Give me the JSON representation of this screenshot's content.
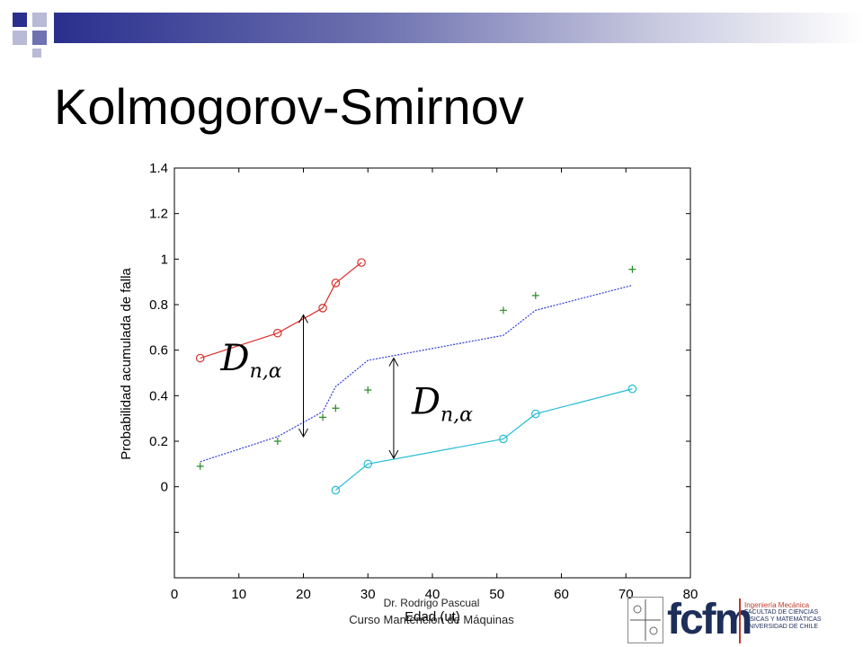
{
  "slide": {
    "title": "Kolmogorov-Smirnov",
    "footer_author": "Dr. Rodrigo Pascual",
    "footer_course": "Curso Mantención de Máquinas",
    "logo": {
      "wordmark": "fcfm",
      "line1": "Ingeniería Mecánica",
      "line2": "FACULTAD DE CIENCIAS",
      "line3": "FÍSICAS Y MATEMÁTICAS",
      "line4": "UNIVERSIDAD DE CHILE"
    },
    "colors": {
      "title_bar": "#2a2f8e",
      "accent": "#c0392b"
    }
  },
  "chart_data": {
    "type": "line",
    "title": "",
    "xlabel": "Edad (ut)",
    "ylabel": "Probabilidad acumulada de falla",
    "xlim": [
      0,
      80
    ],
    "ylim": [
      -0.4,
      1.4
    ],
    "x_ticks": [
      0,
      10,
      20,
      30,
      40,
      50,
      60,
      70,
      80
    ],
    "y_ticks": [
      0,
      0.2,
      0.4,
      0.6,
      0.8,
      1,
      1.2,
      1.4
    ],
    "y_tick_labels": [
      "0",
      "0.2",
      "0.4",
      "0.6",
      "0.8",
      "1",
      "1.2",
      "1.4"
    ],
    "grid": false,
    "series": [
      {
        "style": "line-circle",
        "color": "#d9302c",
        "x": [
          4,
          16,
          23,
          25,
          29
        ],
        "y": [
          0.565,
          0.675,
          0.785,
          0.895,
          0.985
        ]
      },
      {
        "style": "dashed",
        "color": "#2f3bd6",
        "x": [
          4,
          16,
          23,
          25,
          30,
          51,
          56,
          71
        ],
        "y": [
          0.11,
          0.22,
          0.33,
          0.44,
          0.555,
          0.665,
          0.775,
          0.885
        ]
      },
      {
        "style": "line-circle",
        "color": "#22bcd4",
        "x": [
          25,
          30,
          51,
          56,
          71
        ],
        "y": [
          -0.015,
          0.1,
          0.21,
          0.32,
          0.43
        ]
      },
      {
        "style": "plus",
        "color": "#2a8a2a",
        "x": [
          4,
          16,
          23,
          25,
          30,
          51,
          56,
          71
        ],
        "y": [
          0.09,
          0.2,
          0.305,
          0.345,
          0.425,
          0.775,
          0.84,
          0.955
        ]
      }
    ],
    "annotations": [
      {
        "label": "D",
        "subscript": "n,α",
        "x": 20,
        "y_from": 0.22,
        "y_to": 0.755
      },
      {
        "label": "D",
        "subscript": "n,α",
        "x": 34,
        "y_from": 0.125,
        "y_to": 0.565
      }
    ]
  }
}
